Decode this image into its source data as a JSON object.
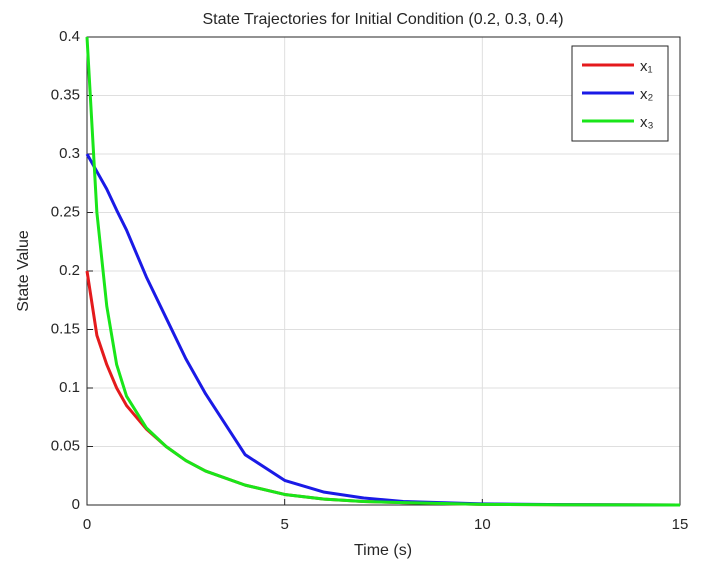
{
  "chart_data": {
    "type": "line",
    "title": "State Trajectories for Initial Condition (0.2, 0.3, 0.4)",
    "x_label": "Time (s)",
    "y_label": "State Value",
    "x": [
      0,
      0.25,
      0.5,
      0.75,
      1,
      1.5,
      2,
      2.5,
      3,
      4,
      5,
      6,
      7,
      8,
      10,
      12,
      15
    ],
    "series": [
      {
        "name": "x₁",
        "color": "#e41a1c",
        "values": [
          0.2,
          0.145,
          0.12,
          0.1,
          0.085,
          0.065,
          0.05,
          0.038,
          0.029,
          0.017,
          0.009,
          0.005,
          0.003,
          0.002,
          0.0005,
          0.0002,
          0
        ]
      },
      {
        "name": "x₂",
        "color": "#1a1ae6",
        "values": [
          0.3,
          0.285,
          0.27,
          0.252,
          0.235,
          0.195,
          0.16,
          0.125,
          0.095,
          0.043,
          0.021,
          0.011,
          0.006,
          0.003,
          0.001,
          0.0003,
          0
        ]
      },
      {
        "name": "x₃",
        "color": "#19e619",
        "values": [
          0.4,
          0.25,
          0.17,
          0.12,
          0.093,
          0.066,
          0.05,
          0.038,
          0.029,
          0.017,
          0.009,
          0.005,
          0.003,
          0.002,
          0.0005,
          0.0002,
          0
        ]
      }
    ],
    "xlim": [
      0,
      15
    ],
    "xticks": [
      0,
      5,
      10,
      15
    ],
    "ylim": [
      0,
      0.4
    ],
    "yticks": [
      0,
      0.05,
      0.1,
      0.15,
      0.2,
      0.25,
      0.3,
      0.35,
      0.4
    ],
    "grid": true,
    "legend": "upper right"
  }
}
